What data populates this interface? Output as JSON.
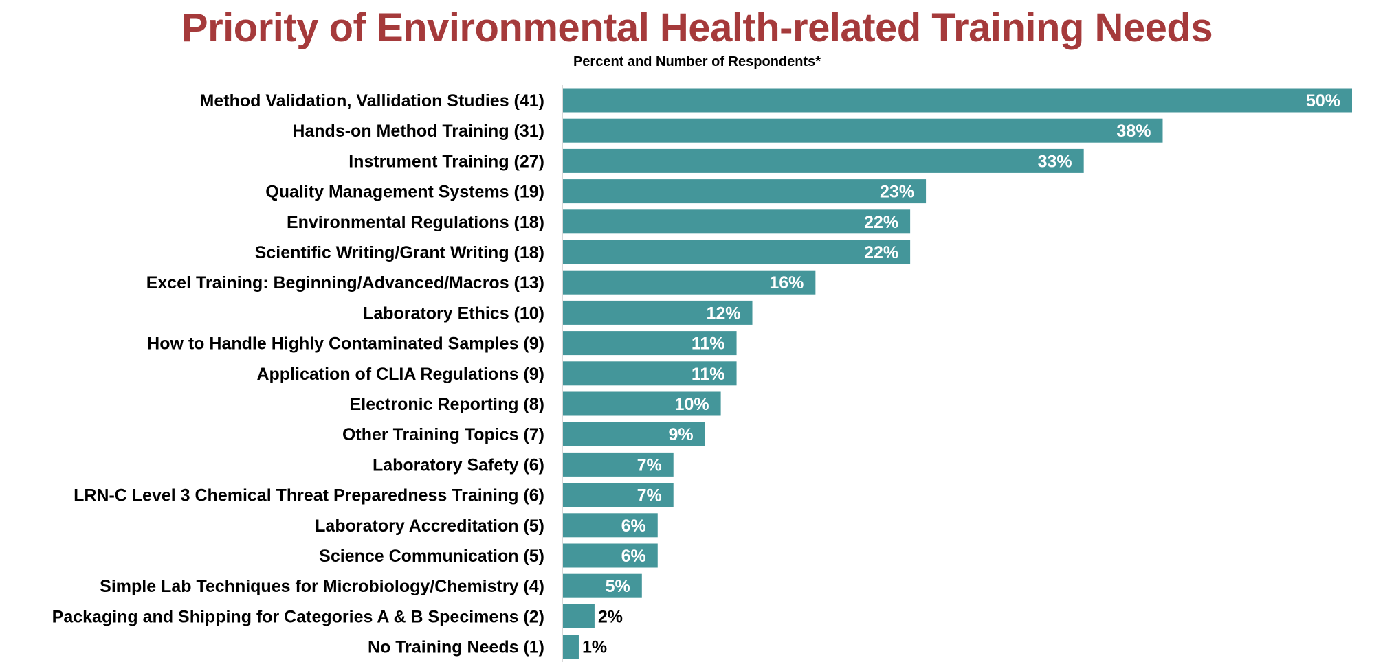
{
  "chart_data": {
    "type": "bar",
    "orientation": "horizontal",
    "title": "Priority of Environmental Health-related Training Needs",
    "subtitle": "Percent and Number of Respondents*",
    "bar_color": "#44969a",
    "title_color": "#a53a3b",
    "xlim": [
      0,
      50
    ],
    "grid": false,
    "legend": "none",
    "categories": [
      "Method Validation, Vallidation Studies (41)",
      "Hands-on Method Training (31)",
      "Instrument Training (27)",
      "Quality Management Systems (19)",
      "Environmental Regulations (18)",
      "Scientific Writing/Grant Writing (18)",
      "Excel Training: Beginning/Advanced/Macros (13)",
      "Laboratory Ethics (10)",
      "How to Handle Highly Contaminated Samples (9)",
      "Application of CLIA Regulations (9)",
      "Electronic Reporting (8)",
      "Other Training Topics (7)",
      "Laboratory Safety (6)",
      "LRN-C Level 3 Chemical Threat Preparedness Training (6)",
      "Laboratory Accreditation (5)",
      "Science Communication (5)",
      "Simple Lab Techniques for Microbiology/Chemistry (4)",
      "Packaging and Shipping for Categories A & B Specimens (2)",
      "No Training Needs (1)"
    ],
    "values": [
      50,
      38,
      33,
      23,
      22,
      22,
      16,
      12,
      11,
      11,
      10,
      9,
      7,
      7,
      6,
      6,
      5,
      2,
      1
    ],
    "value_labels": [
      "50%",
      "38%",
      "33%",
      "23%",
      "22%",
      "22%",
      "16%",
      "12%",
      "11%",
      "11%",
      "10%",
      "9%",
      "7%",
      "7%",
      "6%",
      "6%",
      "5%",
      "2%",
      "1%"
    ]
  }
}
